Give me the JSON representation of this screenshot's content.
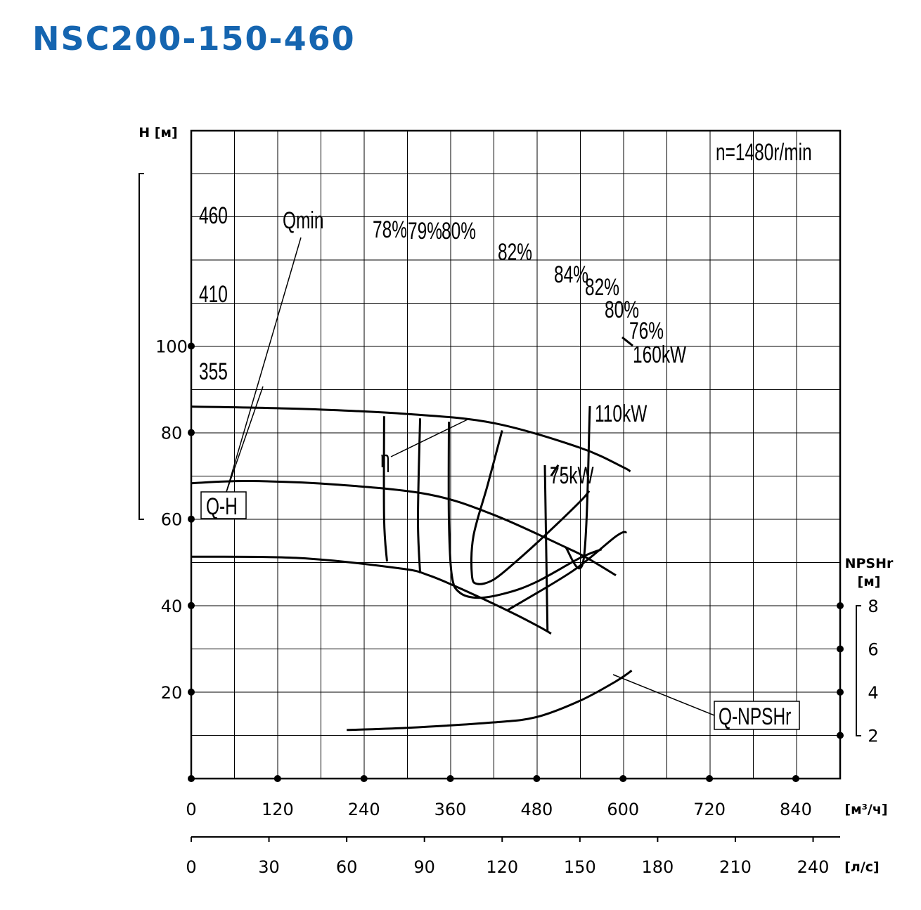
{
  "title": "NSC200-150-460",
  "chart_data": {
    "type": "line",
    "title": "NSC200-150-460",
    "speed_label": "n=1480r/min",
    "xlabel_primary": "[м³/ч]",
    "xlabel_secondary": "[л/с]",
    "ylabel_head": "H [м]",
    "ylabel_npsh_line1": "NPSHr",
    "ylabel_npsh_line2": "[м]",
    "x_ticks_m3h": [
      "0",
      "120",
      "240",
      "360",
      "480",
      "600",
      "720",
      "840"
    ],
    "x_ticks_ls": [
      "0",
      "30",
      "60",
      "90",
      "120",
      "150",
      "180",
      "210",
      "240"
    ],
    "y_ticks_head": [
      "20",
      "40",
      "60",
      "80",
      "100"
    ],
    "y_ticks_npsh": [
      "2",
      "4",
      "6",
      "8"
    ],
    "xlim": [
      0,
      900
    ],
    "ylim_head": [
      0,
      110
    ],
    "ylim_npsh": [
      0,
      8
    ],
    "grid": true,
    "head_curves": [
      {
        "name": "460",
        "points": [
          [
            0,
            86
          ],
          [
            150,
            85.5
          ],
          [
            300,
            84.3
          ],
          [
            420,
            82.2
          ],
          [
            540,
            76.5
          ],
          [
            600,
            72
          ],
          [
            610,
            71
          ]
        ]
      },
      {
        "name": "410",
        "points": [
          [
            0,
            68.3
          ],
          [
            80,
            68.8
          ],
          [
            200,
            68
          ],
          [
            330,
            65.7
          ],
          [
            420,
            61
          ],
          [
            520,
            53.5
          ],
          [
            550,
            51
          ],
          [
            590,
            47
          ]
        ]
      },
      {
        "name": "355",
        "points": [
          [
            0,
            51.3
          ],
          [
            150,
            51
          ],
          [
            290,
            48.6
          ],
          [
            330,
            47
          ],
          [
            380,
            43.5
          ],
          [
            450,
            38
          ],
          [
            490,
            34.5
          ],
          [
            500,
            33.5
          ]
        ]
      }
    ],
    "efficiency_curves": [
      {
        "name": "78%",
        "points": [
          [
            268,
            83.8
          ],
          [
            268,
            60
          ],
          [
            272,
            50.2
          ]
        ]
      },
      {
        "name": "79%",
        "points": [
          [
            318,
            83.3
          ],
          [
            315,
            60
          ],
          [
            318,
            47.5
          ]
        ]
      },
      {
        "name": "80%",
        "points": [
          [
            358,
            82.5
          ],
          [
            358,
            60
          ],
          [
            362,
            47
          ],
          [
            373,
            43
          ],
          [
            400,
            41.8
          ],
          [
            440,
            43
          ],
          [
            480,
            45.5
          ],
          [
            540,
            51
          ],
          [
            570,
            53
          ]
        ]
      },
      {
        "name": "82%",
        "points": [
          [
            432,
            80.5
          ],
          [
            412,
            68
          ],
          [
            392,
            56
          ],
          [
            390,
            47
          ],
          [
            398,
            45
          ],
          [
            420,
            46
          ],
          [
            450,
            50
          ],
          [
            490,
            56
          ],
          [
            540,
            64
          ],
          [
            553,
            66.5
          ]
        ]
      },
      {
        "name": "84%",
        "points": [
          [
            500,
            70
          ],
          [
            510,
            72.5
          ]
        ]
      },
      {
        "name": "76%",
        "points": [
          [
            440,
            39
          ],
          [
            530,
            48
          ],
          [
            590,
            56
          ],
          [
            605,
            57
          ]
        ]
      }
    ],
    "power_labels": [
      "160kW",
      "110kW",
      "75kW"
    ],
    "efficiency_labels": [
      "78%",
      "79%",
      "80%",
      "82%",
      "84%",
      "82%",
      "80%",
      "76%"
    ],
    "qmin_label": "Qmin",
    "eta_label": "η",
    "qh_label": "Q-H",
    "npsh_label": "Q-NPSHr",
    "npsh_curve": {
      "name": "Q-NPSHr",
      "points": [
        [
          216,
          2.25
        ],
        [
          300,
          2.35
        ],
        [
          420,
          2.6
        ],
        [
          480,
          2.85
        ],
        [
          540,
          3.6
        ],
        [
          590,
          4.5
        ],
        [
          612,
          5
        ]
      ]
    }
  }
}
